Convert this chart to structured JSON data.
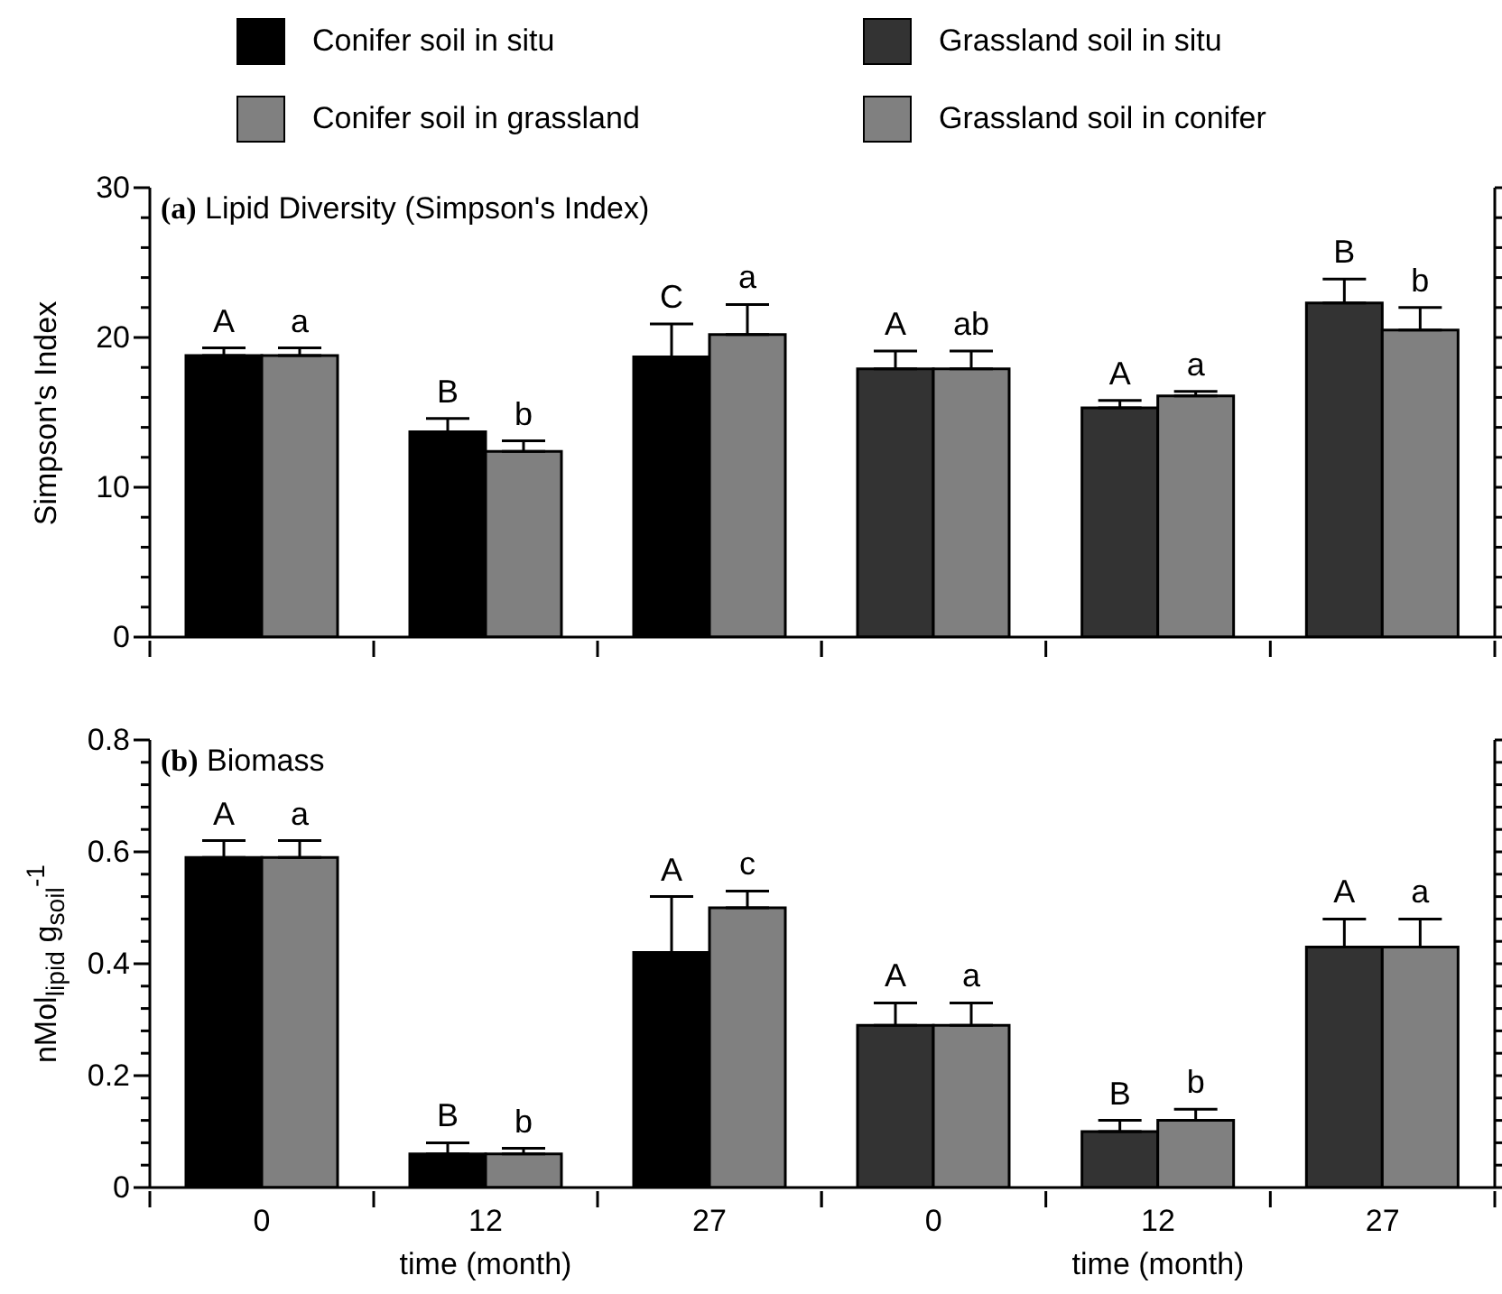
{
  "chart_data": [
    {
      "type": "bar",
      "title": "(a) Lipid Diversity (Simpson's Index)",
      "ylabel": "Simpson's Index",
      "categories": [
        "0",
        "12",
        "27"
      ],
      "ylim": [
        0,
        30
      ],
      "yticks": [
        0,
        {
          "value": 2,
          "label": null
        },
        {
          "value": 4,
          "label": null
        },
        {
          "value": 6,
          "label": null
        },
        {
          "value": 8,
          "label": null
        },
        10,
        {
          "value": 12,
          "label": null
        },
        {
          "value": 14,
          "label": null
        },
        {
          "value": 16,
          "label": null
        },
        {
          "value": 18,
          "label": null
        },
        20,
        {
          "value": 22,
          "label": null
        },
        {
          "value": 24,
          "label": null
        },
        {
          "value": 26,
          "label": null
        },
        {
          "value": 28,
          "label": null
        },
        30
      ],
      "legend": "top",
      "tick_labels": "y",
      "series": [
        {
          "name": "Conifer soil in situ",
          "color": "#000000",
          "values": [
            18.8,
            13.7,
            18.7
          ],
          "errors": [
            [
              18.8,
              19.3
            ],
            [
              13.7,
              14.6
            ],
            [
              18.7,
              20.9
            ]
          ],
          "value_labels": [
            "A",
            "B",
            "C"
          ]
        },
        {
          "name": "Conifer soil in grassland",
          "color": "#808080",
          "values": [
            18.8,
            12.4,
            20.2
          ],
          "errors": [
            [
              18.8,
              19.3
            ],
            [
              12.4,
              13.1
            ],
            [
              20.2,
              22.2
            ]
          ],
          "value_labels": [
            "a",
            "b",
            "a"
          ]
        }
      ]
    },
    {
      "type": "bar",
      "categories": [
        "0",
        "12",
        "27"
      ],
      "ylim": [
        0,
        30
      ],
      "yticks": [
        0,
        {
          "value": 2,
          "label": null
        },
        {
          "value": 4,
          "label": null
        },
        {
          "value": 6,
          "label": null
        },
        {
          "value": 8,
          "label": null
        },
        10,
        {
          "value": 12,
          "label": null
        },
        {
          "value": 14,
          "label": null
        },
        {
          "value": 16,
          "label": null
        },
        {
          "value": 18,
          "label": null
        },
        20,
        {
          "value": 22,
          "label": null
        },
        {
          "value": 24,
          "label": null
        },
        {
          "value": 26,
          "label": null
        },
        {
          "value": 28,
          "label": null
        },
        30
      ],
      "legend": "top",
      "tick_labels": false,
      "series": [
        {
          "name": "Grassland soil in situ",
          "color": "#333333",
          "values": [
            17.9,
            15.3,
            22.3
          ],
          "errors": [
            [
              17.9,
              19.1
            ],
            [
              15.3,
              15.8
            ],
            [
              22.3,
              23.9
            ]
          ],
          "value_labels": [
            "A",
            "A",
            "B"
          ]
        },
        {
          "name": "Grassland soil in conifer",
          "color": "#808080",
          "values": [
            17.9,
            16.1,
            20.5
          ],
          "errors": [
            [
              17.9,
              19.1
            ],
            [
              16.1,
              16.4
            ],
            [
              20.5,
              22.0
            ]
          ],
          "value_labels": [
            "ab",
            "a",
            "b"
          ]
        }
      ]
    },
    {
      "type": "bar",
      "title": "(b) Biomass",
      "ylabel": "nMol$_{lipid}$ g$_{soil}$$^{-1}$",
      "xlabel": "time (month)",
      "categories": [
        "0",
        "12",
        "27"
      ],
      "ylim": [
        0,
        0.8
      ],
      "yticks": [
        0,
        {
          "value": 0.04,
          "label": null
        },
        {
          "value": 0.08,
          "label": null
        },
        {
          "value": 0.12,
          "label": null
        },
        {
          "value": 0.16,
          "label": null
        },
        0.2,
        {
          "value": 0.24,
          "label": null
        },
        {
          "value": 0.28,
          "label": null
        },
        {
          "value": 0.32,
          "label": null
        },
        {
          "value": 0.36,
          "label": null
        },
        0.4,
        {
          "value": 0.44,
          "label": null
        },
        {
          "value": 0.48,
          "label": null
        },
        {
          "value": 0.52,
          "label": null
        },
        {
          "value": 0.56,
          "label": null
        },
        0.6,
        {
          "value": 0.64,
          "label": null
        },
        {
          "value": 0.68,
          "label": null
        },
        {
          "value": 0.72,
          "label": null
        },
        {
          "value": 0.76,
          "label": null
        },
        0.8
      ],
      "series": [
        {
          "color": "#000000",
          "values": [
            0.59,
            0.06,
            0.42
          ],
          "errors": [
            [
              0.59,
              0.62
            ],
            [
              0.06,
              0.08
            ],
            [
              0.42,
              0.52
            ]
          ],
          "value_labels": [
            "A",
            "B",
            "A"
          ]
        },
        {
          "color": "#808080",
          "values": [
            0.59,
            0.06,
            0.5
          ],
          "errors": [
            [
              0.59,
              0.62
            ],
            [
              0.06,
              0.07
            ],
            [
              0.5,
              0.53
            ]
          ],
          "value_labels": [
            "a",
            "b",
            "c"
          ]
        }
      ]
    },
    {
      "type": "bar",
      "xlabel": "time (month)",
      "categories": [
        "0",
        "12",
        "27"
      ],
      "ylim": [
        0,
        0.8
      ],
      "yticks": [
        0,
        {
          "value": 0.04,
          "label": null
        },
        {
          "value": 0.08,
          "label": null
        },
        {
          "value": 0.12,
          "label": null
        },
        {
          "value": 0.16,
          "label": null
        },
        0.2,
        {
          "value": 0.24,
          "label": null
        },
        {
          "value": 0.28,
          "label": null
        },
        {
          "value": 0.32,
          "label": null
        },
        {
          "value": 0.36,
          "label": null
        },
        0.4,
        {
          "value": 0.44,
          "label": null
        },
        {
          "value": 0.48,
          "label": null
        },
        {
          "value": 0.52,
          "label": null
        },
        {
          "value": 0.56,
          "label": null
        },
        0.6,
        {
          "value": 0.64,
          "label": null
        },
        {
          "value": 0.68,
          "label": null
        },
        {
          "value": 0.72,
          "label": null
        },
        {
          "value": 0.76,
          "label": null
        },
        0.8
      ],
      "tick_labels": "x",
      "series": [
        {
          "color": "#333333",
          "values": [
            0.29,
            0.1,
            0.43
          ],
          "errors": [
            [
              0.29,
              0.33
            ],
            [
              0.1,
              0.12
            ],
            [
              0.43,
              0.48
            ]
          ],
          "value_labels": [
            "A",
            "B",
            "A"
          ]
        },
        {
          "color": "#808080",
          "values": [
            0.29,
            0.12,
            0.43
          ],
          "errors": [
            [
              0.29,
              0.33
            ],
            [
              0.12,
              0.14
            ],
            [
              0.43,
              0.48
            ]
          ],
          "value_labels": [
            "a",
            "b",
            "a"
          ]
        }
      ]
    }
  ]
}
